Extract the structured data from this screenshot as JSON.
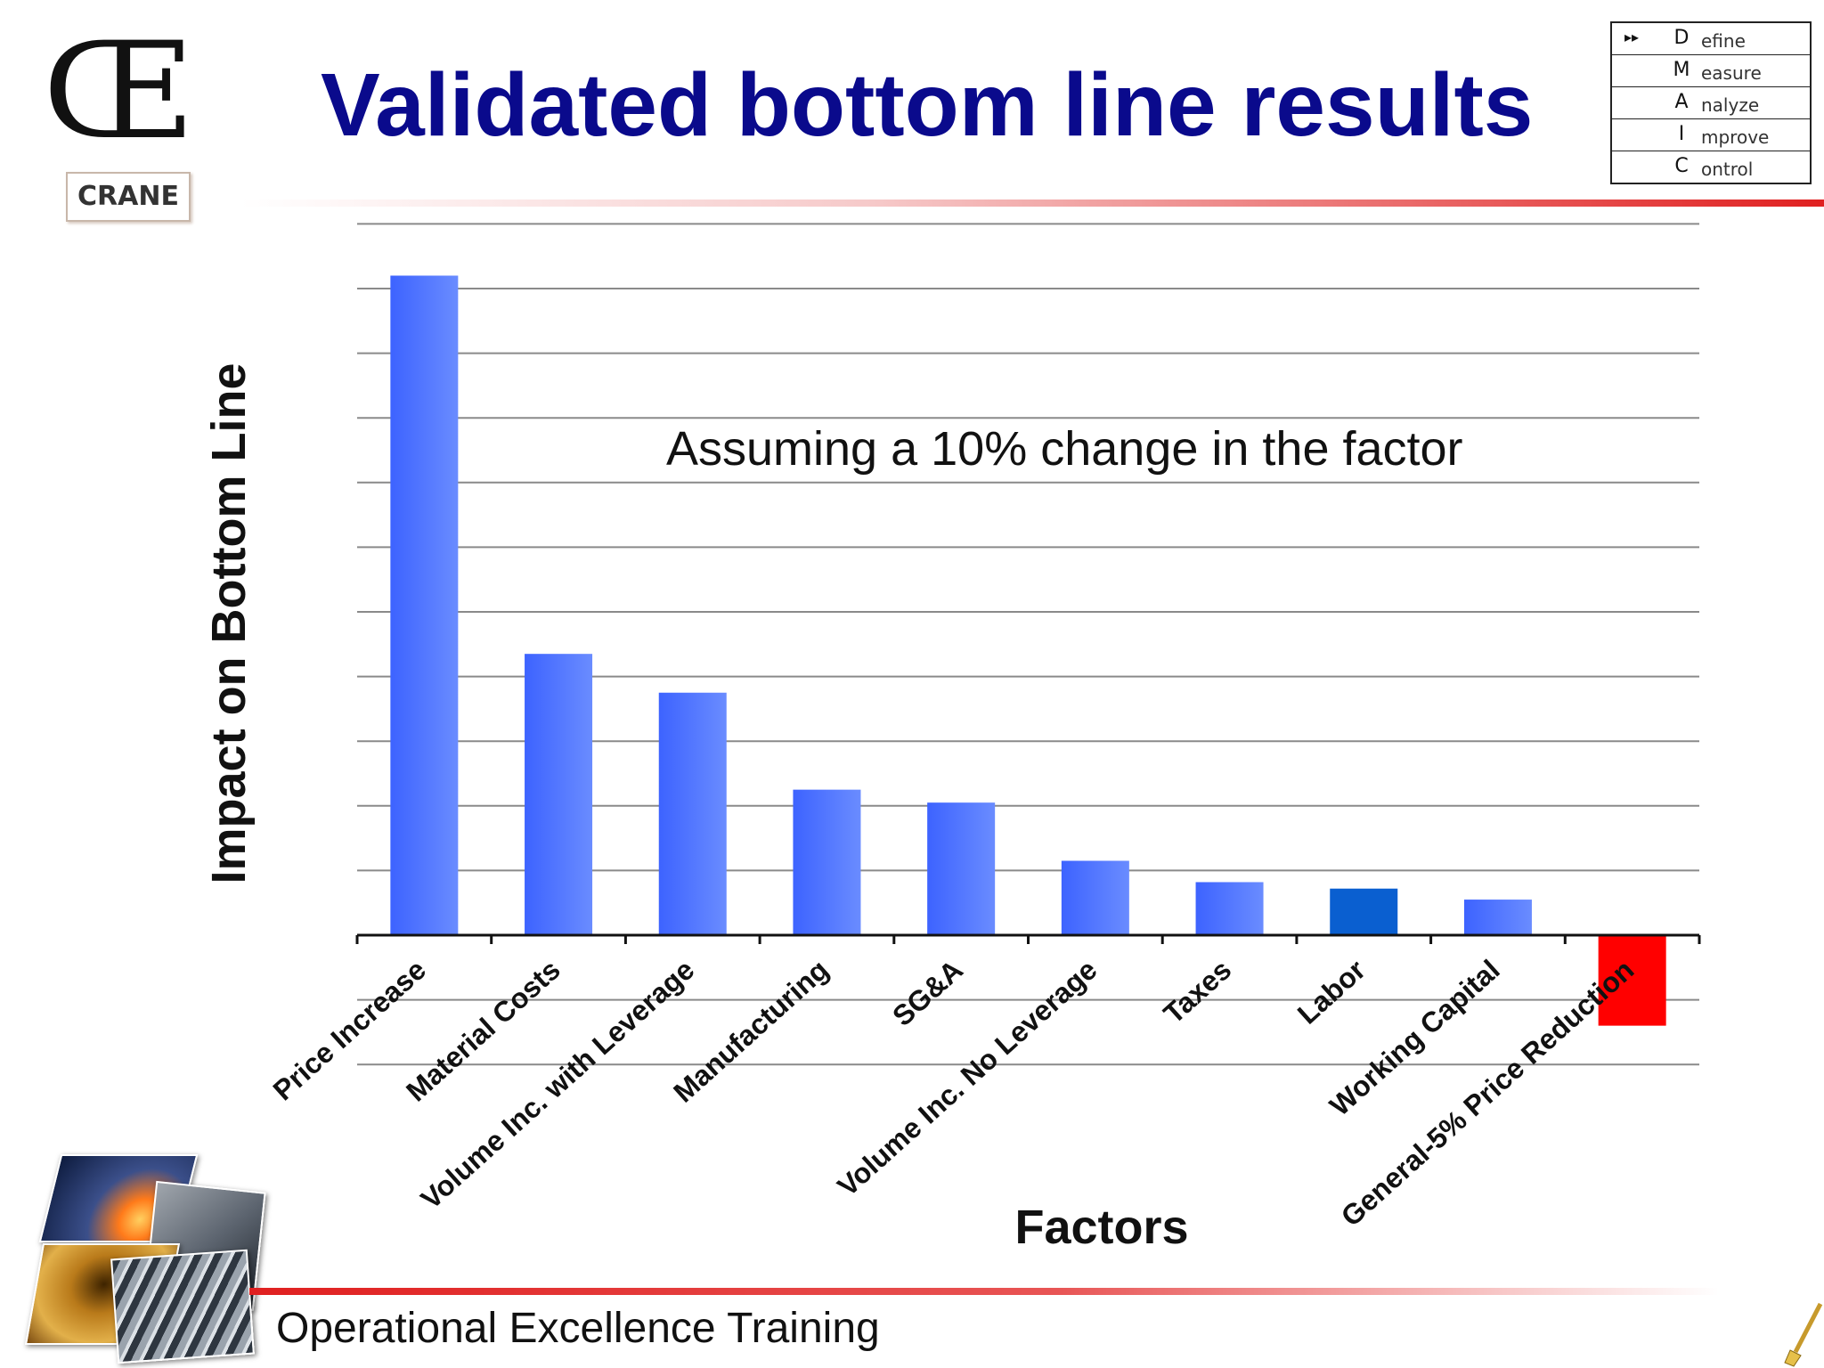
{
  "logo": {
    "mark": "Œ",
    "company": "CRANE"
  },
  "slide": {
    "title": "Validated bottom line results"
  },
  "dmaic": [
    {
      "letter": "D",
      "rest": "efine",
      "arrow": "▸▸"
    },
    {
      "letter": "M",
      "rest": "easure",
      "arrow": ""
    },
    {
      "letter": "A",
      "rest": "nalyze",
      "arrow": ""
    },
    {
      "letter": "I",
      "rest": "mprove",
      "arrow": ""
    },
    {
      "letter": "C",
      "rest": "ontrol",
      "arrow": ""
    }
  ],
  "chart_data": {
    "type": "bar",
    "title": "",
    "annotation": "Assuming a 10% change in the factor",
    "xlabel": "Factors",
    "ylabel": "Impact on Bottom Line",
    "ylim": [
      -2,
      11
    ],
    "grid": true,
    "y_tick_labels_shown": false,
    "categories": [
      "Price Increase",
      "Material Costs",
      "Volume Inc. with Leverage",
      "Manufacturing",
      "SG&A",
      "Volume Inc. No Leverage",
      "Taxes",
      "Labor",
      "Working Capital",
      "General-5% Price Reduction"
    ],
    "values": [
      10.2,
      4.35,
      3.75,
      2.25,
      2.05,
      1.15,
      0.82,
      0.72,
      0.55,
      -1.4
    ],
    "colors": [
      "#4d72ff",
      "#4d72ff",
      "#4d72ff",
      "#4d72ff",
      "#4d72ff",
      "#4d72ff",
      "#4d72ff",
      "#0a5fd0",
      "#4d72ff",
      "#ff0000"
    ]
  },
  "footer": {
    "text": "Operational Excellence Training"
  }
}
